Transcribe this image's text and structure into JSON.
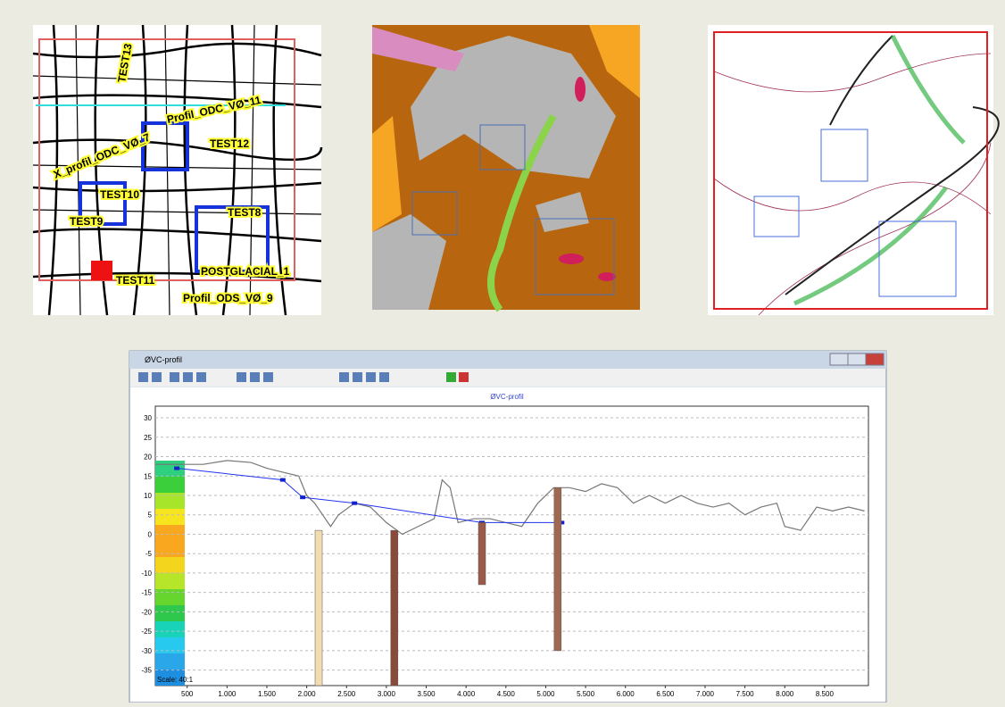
{
  "maps": {
    "road_labels": [
      "TEST13",
      "Profil_ODC_VØ_11",
      "TEST12",
      "X_profil_ODC_VØ_7",
      "TEST10",
      "TEST9",
      "TEST8",
      "TEST11",
      "POSTGLACIAL_1",
      "Profil_ODS_VØ_9"
    ]
  },
  "window": {
    "title": "ØVC-profil"
  },
  "profile": {
    "title": "ØVC-profil",
    "scale_label": "Scale: 40:1",
    "xlim": [
      100,
      9050
    ],
    "ylim": [
      -39,
      33
    ],
    "xticks": [
      500,
      {
        "value": 1000,
        "label": "1.000"
      },
      {
        "value": 1500,
        "label": "1.500"
      },
      {
        "value": 2000,
        "label": "2.000"
      },
      {
        "value": 2500,
        "label": "2.500"
      },
      {
        "value": 3000,
        "label": "3.000"
      },
      {
        "value": 3500,
        "label": "3.500"
      },
      {
        "value": 4000,
        "label": "4.000"
      },
      {
        "value": 4500,
        "label": "4.500"
      },
      {
        "value": 5000,
        "label": "5.000"
      },
      {
        "value": 5500,
        "label": "5.500"
      },
      {
        "value": 6000,
        "label": "6.000"
      },
      {
        "value": 6500,
        "label": "6.500"
      },
      {
        "value": 7000,
        "label": "7.000"
      },
      {
        "value": 7500,
        "label": "7.500"
      },
      {
        "value": 8000,
        "label": "8.000"
      },
      {
        "value": 8500,
        "label": "8.500"
      }
    ],
    "yticks": [
      30,
      25,
      20,
      15,
      10,
      5,
      0,
      -5,
      -10,
      -15,
      -20,
      -25,
      -30,
      -35
    ],
    "terrain": {
      "x": [
        100,
        700,
        1000,
        1300,
        1500,
        1700,
        1900,
        2000,
        2100,
        2200,
        2300,
        2400,
        2600,
        2800,
        3000,
        3200,
        3400,
        3600,
        3700,
        3800,
        3900,
        4100,
        4300,
        4500,
        4700,
        4900,
        5100,
        5300,
        5500,
        5700,
        5900,
        6100,
        6300,
        6500,
        6700,
        6900,
        7100,
        7300,
        7500,
        7700,
        7900,
        8000,
        8200,
        8400,
        8600,
        8800,
        9000
      ],
      "y": [
        18,
        18,
        19,
        18.5,
        17,
        16,
        15,
        10,
        8,
        5,
        2,
        5,
        8,
        7,
        3,
        0,
        2,
        4,
        14,
        12,
        3,
        4,
        4,
        3,
        2,
        8,
        12,
        12,
        11,
        13,
        12,
        8,
        10,
        8,
        10,
        8,
        7,
        8,
        5,
        7,
        8,
        2,
        1,
        7,
        6,
        7,
        6
      ]
    },
    "profile_line": {
      "x": [
        370,
        1700,
        1950,
        2600,
        4200,
        5200
      ],
      "y": [
        17,
        14,
        9.5,
        8,
        3,
        3
      ]
    },
    "boreholes": [
      {
        "x": 2150,
        "top": 1,
        "bottom": -39
      },
      {
        "x": 3100,
        "top": 1,
        "bottom": -39
      },
      {
        "x": 4200,
        "top": 3,
        "bottom": -13
      },
      {
        "x": 5150,
        "top": 12,
        "bottom": -30
      }
    ]
  }
}
